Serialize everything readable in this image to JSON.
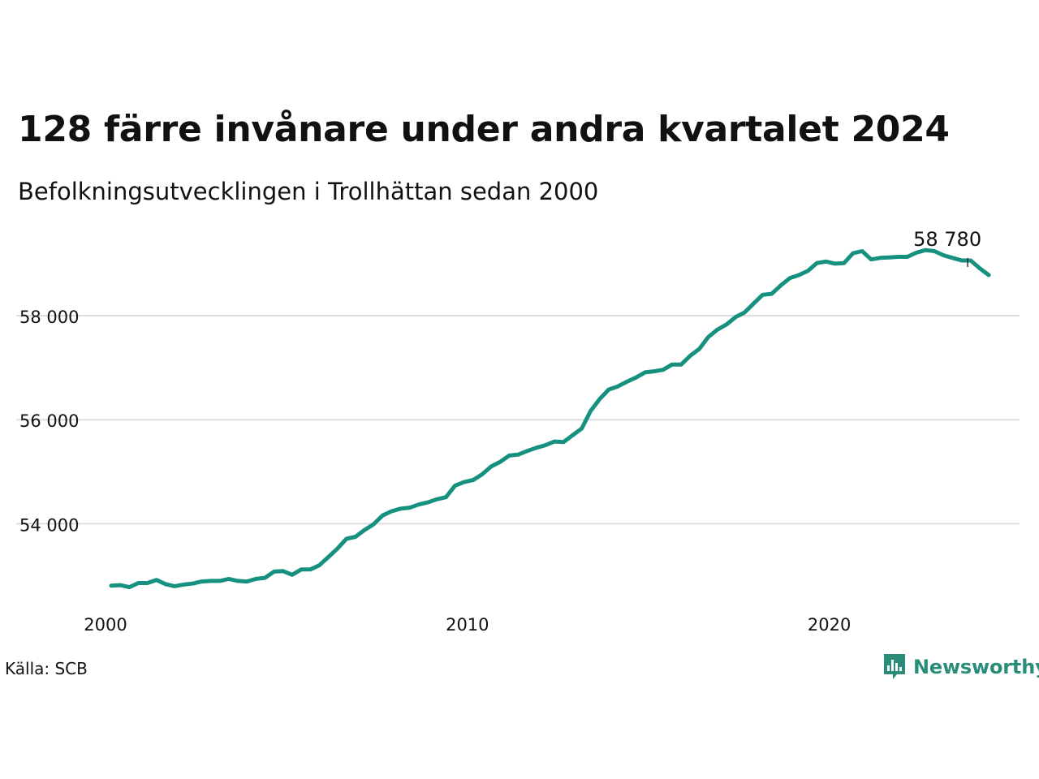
{
  "title": "128 färre invånare under andra kvartalet 2024",
  "subtitle": "Befolkningsutvecklingen i Trollhättan sedan 2000",
  "source": "Källa: SCB",
  "brand": {
    "name": "Newsworthy",
    "icon": "newsworthy-logo-icon",
    "color": "#2a8d7a"
  },
  "chart_data": {
    "type": "line",
    "color": "#16917f",
    "grid": true,
    "xlim": [
      2000,
      2025.1
    ],
    "ylim": [
      52400,
      59700
    ],
    "x_ticks": [
      {
        "value": 2000,
        "label": "2000"
      },
      {
        "value": 2010,
        "label": "2010"
      },
      {
        "value": 2020,
        "label": "2020"
      }
    ],
    "y_ticks": [
      {
        "value": 54000,
        "label": "54 000"
      },
      {
        "value": 56000,
        "label": "56 000"
      },
      {
        "value": 58000,
        "label": "58 000"
      }
    ],
    "end_label": "58 780",
    "start": {
      "year": 2000,
      "quarter": 1
    },
    "values": [
      52810,
      52820,
      52780,
      52860,
      52860,
      52920,
      52840,
      52800,
      52830,
      52850,
      52890,
      52900,
      52900,
      52940,
      52900,
      52890,
      52940,
      52960,
      53080,
      53090,
      53020,
      53120,
      53120,
      53200,
      53360,
      53520,
      53710,
      53750,
      53880,
      53990,
      54160,
      54240,
      54290,
      54310,
      54370,
      54410,
      54470,
      54510,
      54730,
      54800,
      54840,
      54950,
      55100,
      55190,
      55310,
      55330,
      55400,
      55460,
      55510,
      55580,
      55570,
      55700,
      55830,
      56170,
      56400,
      56580,
      56640,
      56730,
      56810,
      56910,
      56930,
      56960,
      57060,
      57060,
      57230,
      57360,
      57590,
      57730,
      57830,
      57970,
      58060,
      58230,
      58400,
      58420,
      58580,
      58720,
      58780,
      58860,
      59010,
      59040,
      59000,
      59010,
      59200,
      59240,
      59080,
      59110,
      59120,
      59130,
      59130,
      59210,
      59260,
      59240,
      59160,
      59110,
      59060,
      59060,
      58910,
      58780
    ]
  }
}
